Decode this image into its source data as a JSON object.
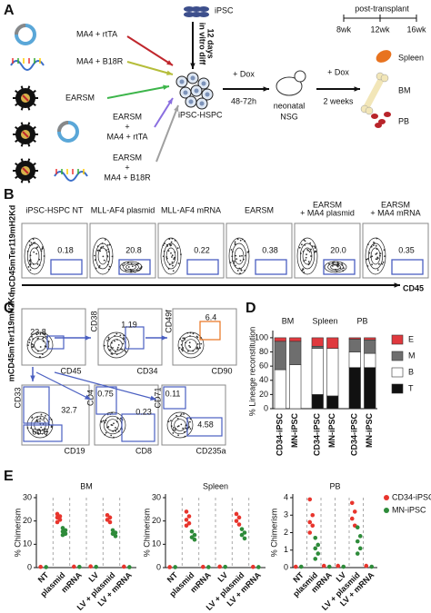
{
  "panels": {
    "A": {
      "label": "A",
      "inputs": [
        [
          "MA4 + rtTA"
        ],
        [
          "MA4 + B18R"
        ],
        [
          "EARSM"
        ],
        [
          "EARSM",
          "+",
          "MA4 + rtTA"
        ],
        [
          "EARSM",
          "+",
          "MA4 + B18R"
        ]
      ],
      "ipsc": "iPSC",
      "diff": [
        "in vitro diff",
        "12 days"
      ],
      "hspc": "iPSC-HSPC",
      "step1": [
        "+ Dox",
        "48-72h"
      ],
      "mouse": [
        "neonatal",
        "NSG"
      ],
      "step2": [
        "+ Dox",
        "2 weeks"
      ],
      "timeline": {
        "title": "post-transplant",
        "ticks": [
          "8wk",
          "12wk",
          "16wk"
        ]
      },
      "organs": [
        "Spleen",
        "BM",
        "PB"
      ]
    },
    "B": {
      "label": "B",
      "y_label": "mCD45mTer119mH2Kd",
      "x_label": "CD45",
      "plots": [
        {
          "title": [
            "iPSC-HSPC NT"
          ],
          "gate": "0.18"
        },
        {
          "title": [
            "MLL-AF4 plasmid"
          ],
          "gate": "20.8"
        },
        {
          "title": [
            "MLL-AF4 mRNA"
          ],
          "gate": "0.22"
        },
        {
          "title": [
            "EARSM"
          ],
          "gate": "0.38"
        },
        {
          "title": [
            "EARSM",
            "+ MA4 plasmid"
          ],
          "gate": "20.0"
        },
        {
          "title": [
            "EARSM",
            "+ MA4 mRNA"
          ],
          "gate": "0.35"
        }
      ]
    },
    "C": {
      "label": "C",
      "plots": [
        {
          "y": "mCD45mTer119mH2Kd",
          "x": "CD45",
          "gates": [
            "23.8"
          ]
        },
        {
          "y": "CD38",
          "x": "CD34",
          "gates": [
            "1.19"
          ]
        },
        {
          "y": "CD49f",
          "x": "CD90",
          "gates": [
            "6.4"
          ]
        },
        {
          "y": "CD33",
          "x": "CD19",
          "gates": [
            "32.7",
            "60.5"
          ]
        },
        {
          "y": "CD4",
          "x": "CD8",
          "gates": [
            "0.75",
            "0.23"
          ]
        },
        {
          "y": "CD71",
          "x": "CD235a",
          "gates": [
            "0.11",
            "4.58"
          ]
        }
      ]
    }
  },
  "chart_data": [
    {
      "type": "bar",
      "label": "D",
      "stacked": true,
      "y_label": "% Lineage reconstitution",
      "groups": [
        "BM",
        "Spleen",
        "PB"
      ],
      "categories": [
        "CD34-iPSC",
        "MN-iPSC",
        "CD34-iPSC",
        "MN-iPSC",
        "CD34-iPSC",
        "MN-iPSC"
      ],
      "ylim": [
        0,
        105
      ],
      "yticks": [
        0,
        20,
        40,
        60,
        80,
        100
      ],
      "series": [
        {
          "name": "T",
          "color": "#111111",
          "values": [
            0,
            0,
            20,
            18,
            58,
            58
          ]
        },
        {
          "name": "B",
          "color": "#ffffff",
          "values": [
            55,
            62,
            65,
            67,
            22,
            20
          ]
        },
        {
          "name": "M",
          "color": "#6e6e6e",
          "values": [
            40,
            33,
            3,
            0,
            18,
            19
          ]
        },
        {
          "name": "E",
          "color": "#e0393e",
          "values": [
            5,
            5,
            12,
            15,
            2,
            3
          ]
        }
      ]
    },
    {
      "type": "strip",
      "label": "E",
      "title": "BM",
      "y_label": "% Chimerism",
      "categories": [
        "NT",
        "plasmid",
        "mRNA",
        "LV",
        "LV + plasmid",
        "LV + mRNA"
      ],
      "ylim": [
        0,
        30
      ],
      "yticks": [
        0,
        10,
        20,
        30
      ],
      "series": [
        {
          "color": "#e8352d",
          "values": [
            [
              0.3
            ],
            [
              23,
              22,
              21.5,
              20.5,
              19.5
            ],
            [
              0.4
            ],
            [
              0.5
            ],
            [
              22.5,
              21.5,
              20.5,
              19.5
            ],
            [
              0.4
            ]
          ]
        },
        {
          "color": "#2e8b3a",
          "values": [
            [
              0.2
            ],
            [
              17,
              16,
              15.5,
              14.5,
              14
            ],
            [
              0.3
            ],
            [
              0.3
            ],
            [
              16,
              15,
              14.5,
              13.5
            ],
            [
              0.2
            ]
          ]
        }
      ]
    },
    {
      "type": "strip",
      "title": "Spleen",
      "y_label": "% Chimerism",
      "categories": [
        "NT",
        "plasmid",
        "mRNA",
        "LV",
        "LV + plasmid",
        "LV + mRNA"
      ],
      "ylim": [
        0,
        30
      ],
      "yticks": [
        0,
        10,
        20,
        30
      ],
      "series": [
        {
          "color": "#e8352d",
          "values": [
            [
              0.2
            ],
            [
              24,
              22,
              20.5,
              19,
              18
            ],
            [
              0.3
            ],
            [
              0.4
            ],
            [
              23,
              21.5,
              20,
              18.5
            ],
            [
              0.3
            ]
          ]
        },
        {
          "color": "#2e8b3a",
          "values": [
            [
              0.2
            ],
            [
              15.5,
              14,
              13,
              12
            ],
            [
              0.2
            ],
            [
              0.3
            ],
            [
              16.5,
              15,
              14,
              12.5
            ],
            [
              0.2
            ]
          ]
        }
      ]
    },
    {
      "type": "strip",
      "title": "PB",
      "y_label": "% Chimerism",
      "categories": [
        "NT",
        "plasmid",
        "mRNA",
        "LV",
        "LV + plasmid",
        "LV + mRNA"
      ],
      "ylim": [
        0,
        4
      ],
      "yticks": [
        0,
        1,
        2,
        3,
        4
      ],
      "series": [
        {
          "name": "CD34-iPSC",
          "color": "#e8352d",
          "values": [
            [
              0.05
            ],
            [
              3.9,
              3,
              2.6,
              2.4,
              2
            ],
            [
              0.1
            ],
            [
              0.1
            ],
            [
              3.7,
              3.2,
              2.8,
              2.4
            ],
            [
              0.1
            ]
          ]
        },
        {
          "name": "MN-iPSC",
          "color": "#2e8b3a",
          "values": [
            [
              0.05
            ],
            [
              1.7,
              1.3,
              1.1,
              0.8,
              0.5
            ],
            [
              0.05
            ],
            [
              0.05
            ],
            [
              2.3,
              1.8,
              1.5,
              1.1,
              0.8
            ],
            [
              0.05
            ]
          ]
        }
      ]
    }
  ]
}
